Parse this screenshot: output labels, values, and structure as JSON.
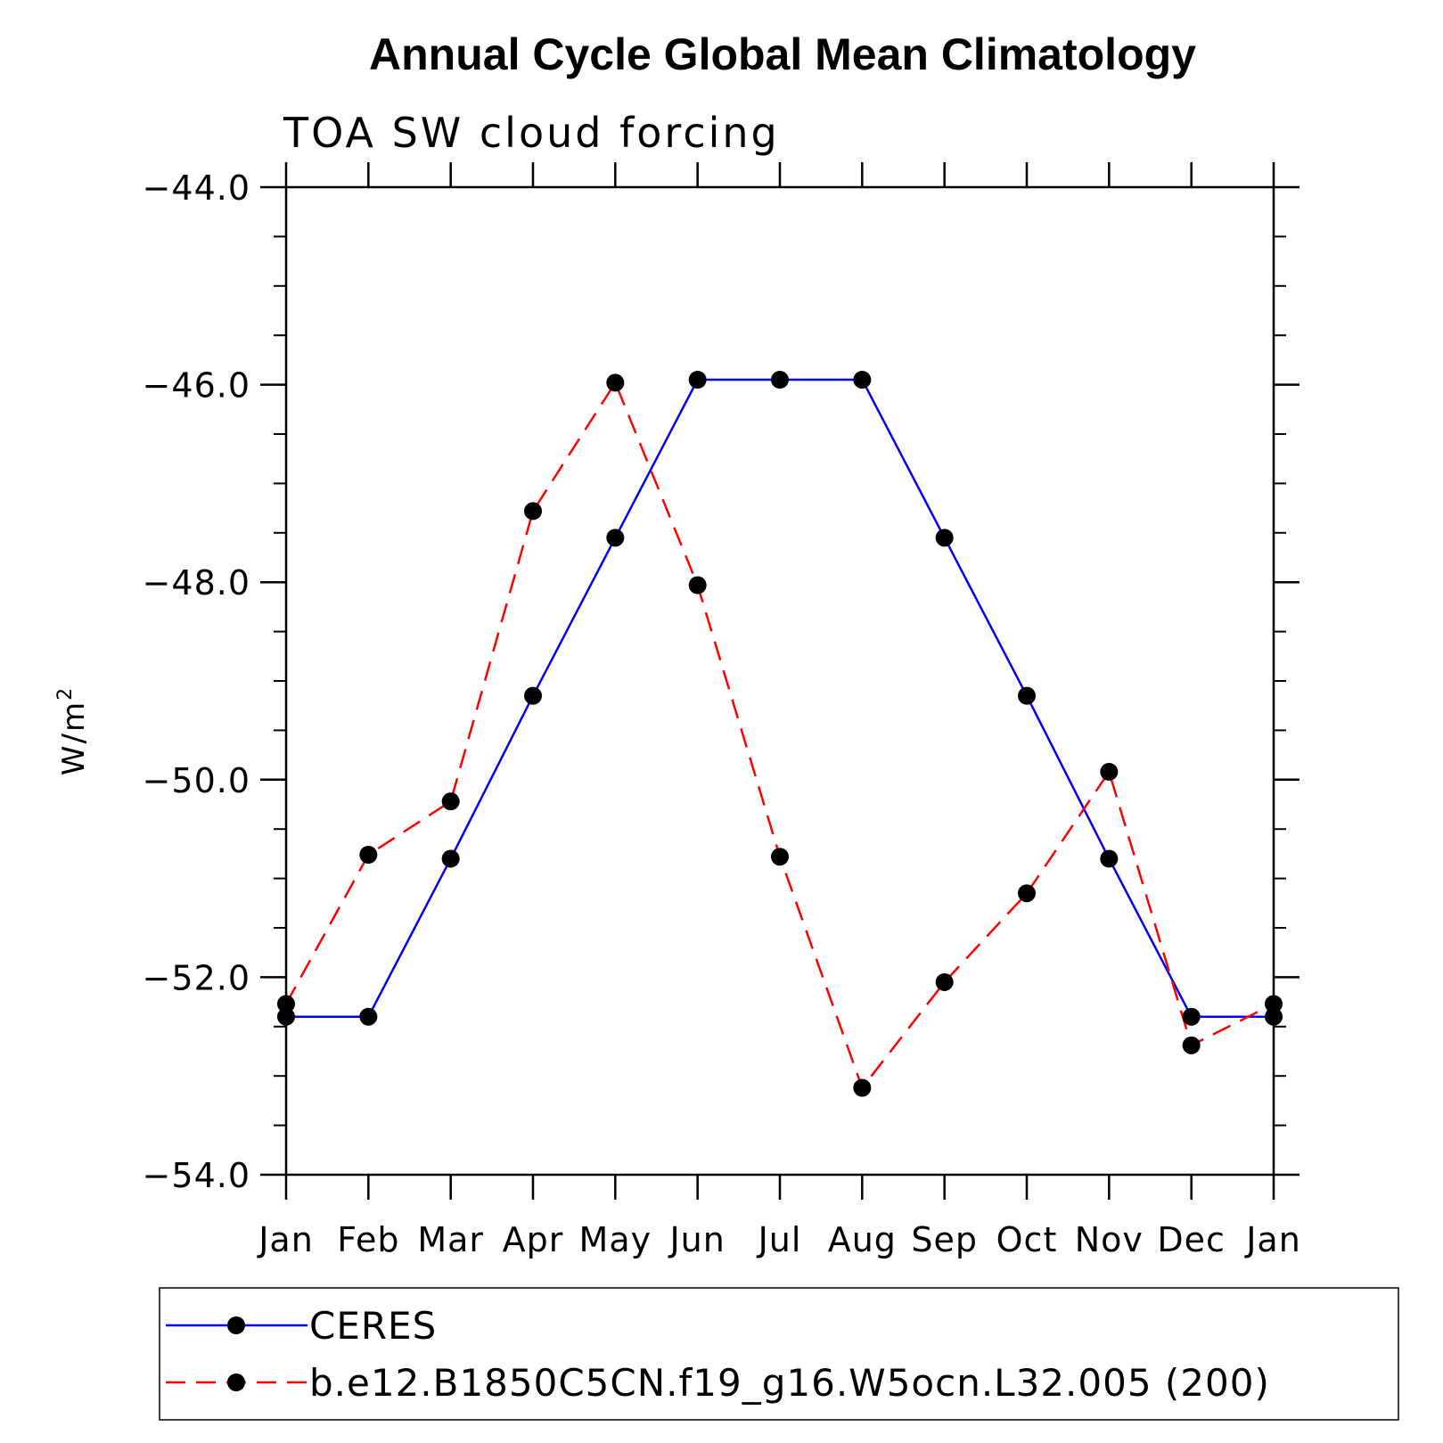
{
  "chart_data": {
    "type": "line",
    "title": "Annual Cycle Global Mean Climatology",
    "subtitle": "TOA SW cloud forcing",
    "ylabel": "W/m",
    "ylabel_sup": "2",
    "categories": [
      "Jan",
      "Feb",
      "Mar",
      "Apr",
      "May",
      "Jun",
      "Jul",
      "Aug",
      "Sep",
      "Oct",
      "Nov",
      "Dec",
      "Jan"
    ],
    "ylim": [
      -54.0,
      -44.0
    ],
    "yticks": [
      -44.0,
      -46.0,
      -48.0,
      -50.0,
      -52.0,
      -54.0
    ],
    "ytick_labels": [
      "−44.0",
      "−46.0",
      "−48.0",
      "−50.0",
      "−52.0",
      "−54.0"
    ],
    "grid": false,
    "legend_position": "bottom",
    "series": [
      {
        "name": "CERES",
        "color": "#0000ff",
        "dash": "solid",
        "values": [
          -52.4,
          -52.4,
          -50.8,
          -49.15,
          -47.55,
          -45.95,
          -45.95,
          -45.95,
          -47.55,
          -49.15,
          -50.8,
          -52.4,
          -52.4
        ]
      },
      {
        "name": "b.e12.B1850C5CN.f19_g16.W5ocn.L32.005 (200)",
        "color": "#ff0000",
        "dash": "dashed",
        "values": [
          -52.27,
          -50.76,
          -50.22,
          -47.28,
          -45.98,
          -48.03,
          -50.78,
          -53.12,
          -52.05,
          -51.15,
          -49.92,
          -52.69,
          -52.27
        ]
      }
    ]
  }
}
